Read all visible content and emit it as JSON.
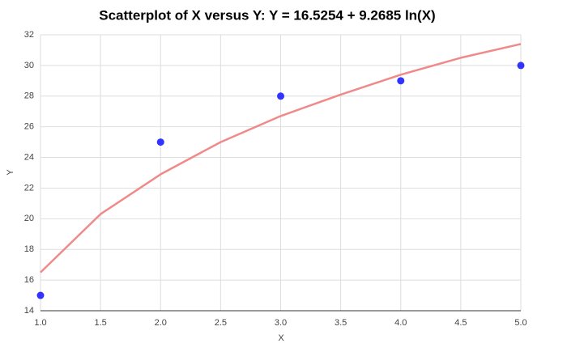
{
  "chart_data": {
    "type": "scatter",
    "title": "Scatterplot of X versus Y: Y = 16.5254  + 9.2685 ln(X)",
    "x_label": "X",
    "y_label": "Y",
    "series": [
      {
        "type": "scatter",
        "color": "#3333ff",
        "x": [
          1,
          2,
          3,
          4,
          5
        ],
        "values": [
          15,
          25,
          28,
          29,
          30
        ]
      },
      {
        "type": "line",
        "color": "#f08a8a",
        "x": [
          1,
          1.5,
          2,
          2.5,
          3,
          3.5,
          4,
          4.5,
          5
        ],
        "values": [
          16.5,
          20.3,
          22.9,
          25.0,
          26.7,
          28.1,
          29.4,
          30.5,
          31.4
        ]
      }
    ],
    "xlim": [
      1,
      5
    ],
    "ylim": [
      14,
      32
    ],
    "xticks": [
      {
        "value": 1,
        "label": "1.0"
      },
      1.5,
      {
        "value": 2,
        "label": "2.0"
      },
      2.5,
      {
        "value": 3,
        "label": "3.0"
      },
      3.5,
      {
        "value": 4,
        "label": "4.0"
      },
      4.5,
      {
        "value": 5,
        "label": "5.0"
      }
    ],
    "yticks": [
      14,
      16,
      18,
      20,
      22,
      24,
      26,
      28,
      30,
      32
    ],
    "grid": true
  }
}
